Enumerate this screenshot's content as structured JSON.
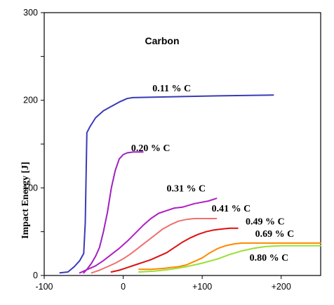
{
  "chart_data": {
    "type": "line",
    "title": "Carbon",
    "xlabel": "",
    "ylabel": "Impact Energy [J]",
    "xlim": [
      -100,
      250
    ],
    "ylim": [
      0,
      300
    ],
    "x_ticks": [
      -100,
      0,
      100,
      200
    ],
    "x_tick_labels": [
      "-100",
      "0",
      "+100",
      "+200"
    ],
    "y_ticks": [
      0,
      100,
      200,
      300
    ],
    "y_tick_labels": [
      "0",
      "100",
      "200",
      "300"
    ],
    "y_minor_ticks": [
      50,
      150,
      250
    ],
    "grid": false,
    "series": [
      {
        "name": "0.11 % C",
        "color": "#3a3ab8",
        "label_at": [
          37,
          210
        ],
        "points": [
          [
            -80,
            3
          ],
          [
            -70,
            4
          ],
          [
            -62,
            10
          ],
          [
            -55,
            17
          ],
          [
            -50,
            25
          ],
          [
            -48,
            60
          ],
          [
            -46,
            163
          ],
          [
            -42,
            170
          ],
          [
            -35,
            180
          ],
          [
            -25,
            188
          ],
          [
            -15,
            193
          ],
          [
            -5,
            198
          ],
          [
            5,
            202
          ],
          [
            12,
            203
          ],
          [
            60,
            204
          ],
          [
            120,
            205
          ],
          [
            190,
            206
          ]
        ]
      },
      {
        "name": "0.20 % C",
        "color": "#a020c0",
        "label_at": [
          10,
          142
        ],
        "points": [
          [
            -50,
            3
          ],
          [
            -45,
            8
          ],
          [
            -40,
            14
          ],
          [
            -35,
            22
          ],
          [
            -30,
            32
          ],
          [
            -25,
            50
          ],
          [
            -20,
            72
          ],
          [
            -15,
            100
          ],
          [
            -10,
            120
          ],
          [
            -5,
            133
          ],
          [
            0,
            138
          ],
          [
            5,
            140
          ],
          [
            13,
            141
          ],
          [
            25,
            141
          ]
        ]
      },
      {
        "name": "0.31 % C",
        "color": "#b020c0",
        "label_at": [
          55,
          96
        ],
        "points": [
          [
            -55,
            3
          ],
          [
            -45,
            7
          ],
          [
            -35,
            11
          ],
          [
            -25,
            17
          ],
          [
            -15,
            24
          ],
          [
            -5,
            31
          ],
          [
            5,
            39
          ],
          [
            15,
            48
          ],
          [
            25,
            57
          ],
          [
            35,
            65
          ],
          [
            45,
            71
          ],
          [
            55,
            74
          ],
          [
            65,
            77
          ],
          [
            75,
            78
          ],
          [
            90,
            82
          ],
          [
            108,
            85
          ],
          [
            118,
            88
          ]
        ]
      },
      {
        "name": "0.41 % C",
        "color": "#f07070",
        "label_at": [
          112,
          73
        ],
        "points": [
          [
            -40,
            3
          ],
          [
            -30,
            6
          ],
          [
            -20,
            10
          ],
          [
            -10,
            14
          ],
          [
            0,
            19
          ],
          [
            10,
            25
          ],
          [
            20,
            32
          ],
          [
            30,
            39
          ],
          [
            40,
            46
          ],
          [
            50,
            53
          ],
          [
            60,
            58
          ],
          [
            70,
            62
          ],
          [
            80,
            64
          ],
          [
            90,
            65
          ],
          [
            100,
            65
          ],
          [
            118,
            65
          ]
        ]
      },
      {
        "name": "0.49 % C",
        "color": "#dd1010",
        "label_at": [
          155,
          58
        ],
        "points": [
          [
            -15,
            4
          ],
          [
            -5,
            6
          ],
          [
            5,
            9
          ],
          [
            15,
            12
          ],
          [
            25,
            15
          ],
          [
            35,
            18
          ],
          [
            45,
            22
          ],
          [
            55,
            26
          ],
          [
            65,
            32
          ],
          [
            75,
            38
          ],
          [
            85,
            43
          ],
          [
            95,
            47
          ],
          [
            105,
            50
          ],
          [
            115,
            52
          ],
          [
            125,
            53
          ],
          [
            135,
            54
          ],
          [
            145,
            54
          ]
        ]
      },
      {
        "name": "0.69 % C",
        "color": "#ff8800",
        "label_at": [
          167,
          44
        ],
        "points": [
          [
            20,
            7
          ],
          [
            35,
            7
          ],
          [
            50,
            8
          ],
          [
            60,
            9
          ],
          [
            70,
            10
          ],
          [
            80,
            12
          ],
          [
            90,
            16
          ],
          [
            100,
            20
          ],
          [
            110,
            26
          ],
          [
            120,
            31
          ],
          [
            130,
            34
          ],
          [
            140,
            36
          ],
          [
            150,
            37
          ],
          [
            165,
            37
          ],
          [
            200,
            37
          ],
          [
            250,
            37
          ]
        ]
      },
      {
        "name": "0.80 % C",
        "color": "#99e033",
        "label_at": [
          160,
          17
        ],
        "points": [
          [
            20,
            4
          ],
          [
            40,
            5
          ],
          [
            60,
            7
          ],
          [
            80,
            10
          ],
          [
            100,
            14
          ],
          [
            120,
            19
          ],
          [
            135,
            24
          ],
          [
            150,
            28
          ],
          [
            165,
            31
          ],
          [
            180,
            33
          ],
          [
            200,
            34
          ],
          [
            250,
            34
          ]
        ]
      }
    ]
  }
}
